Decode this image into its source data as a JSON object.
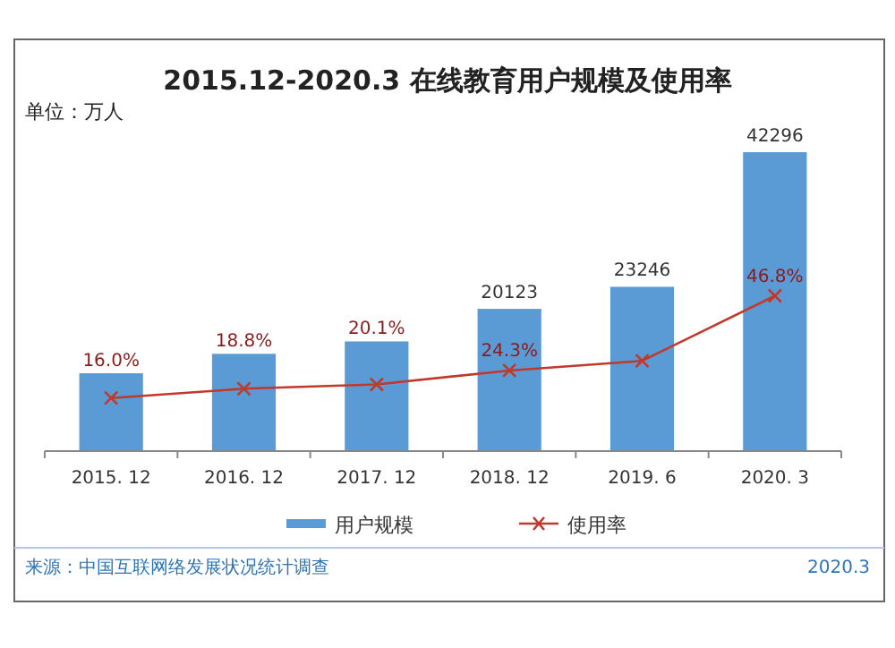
{
  "chart_data": {
    "type": "bar",
    "title": "2015.12-2020.3 在线教育用户规模及使用率",
    "annotations": [
      "单位：万人",
      "来源：中国互联网络发展状况统计调查",
      "2020.3"
    ],
    "categories": [
      "2015. 12",
      "2016. 12",
      "2017. 12",
      "2018. 12",
      "2019. 6",
      "2020. 3"
    ],
    "series": [
      {
        "name": "用户规模",
        "color": "#5b9bd5",
        "values": [
          11014,
          13764,
          15518,
          20123,
          23246,
          42296
        ],
        "value_labels": [
          null,
          null,
          null,
          "20123",
          "23246",
          "42296"
        ]
      },
      {
        "name": "使用率",
        "type": "line",
        "axis": "y2",
        "color": "#c0392b",
        "marker": "cross",
        "values": [
          16.0,
          18.8,
          20.1,
          24.3,
          27.2,
          46.8
        ],
        "value_labels": [
          "16.0%",
          "18.8%",
          "20.1%",
          "24.3%",
          null,
          "46.8%"
        ]
      }
    ],
    "tick_labels": "x",
    "grid": false,
    "legend": "bottom"
  }
}
